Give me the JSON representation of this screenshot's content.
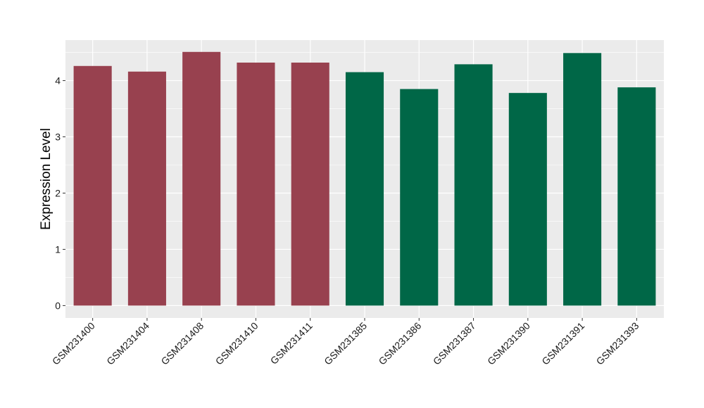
{
  "chart_data": {
    "type": "bar",
    "title": "",
    "xlabel": "",
    "ylabel": "Expression Level",
    "ylim": [
      -0.22,
      4.72
    ],
    "yticks": [
      0,
      1,
      2,
      3,
      4
    ],
    "ytick_labels": [
      "0",
      "1",
      "2",
      "3",
      "4"
    ],
    "grid": true,
    "legend": "none",
    "categories": [
      "GSM231400",
      "GSM231404",
      "GSM231408",
      "GSM231410",
      "GSM231411",
      "GSM231385",
      "GSM231386",
      "GSM231387",
      "GSM231390",
      "GSM231391",
      "GSM231393"
    ],
    "values": [
      4.26,
      4.16,
      4.51,
      4.32,
      4.32,
      4.15,
      3.85,
      4.29,
      3.78,
      4.49,
      3.88
    ],
    "bar_colors": [
      "#98414f",
      "#98414f",
      "#98414f",
      "#98414f",
      "#98414f",
      "#006747",
      "#006747",
      "#006747",
      "#006747",
      "#006747",
      "#006747"
    ],
    "panel_background": "#ebebeb",
    "grid_color": "#ffffff"
  }
}
